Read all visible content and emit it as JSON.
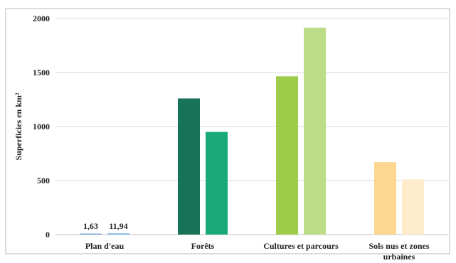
{
  "chart_data": {
    "type": "bar",
    "title": "",
    "xlabel": "",
    "ylabel": "Superficies en km²",
    "ylim": [
      0,
      2000
    ],
    "yticks": [
      "0",
      "500",
      "1000",
      "1500",
      "2000"
    ],
    "grid": true,
    "legend": "none",
    "categories": [
      "Plan d'eau",
      "Forêts",
      "Cultures et parcours",
      "Sols nus et zones urbaines"
    ],
    "series": [
      {
        "values": [
          1.63,
          1260,
          1465,
          670
        ],
        "colors": [
          "#7faedb",
          "#167358",
          "#9dcc48",
          "#fdd68f"
        ]
      },
      {
        "values": [
          11.94,
          950,
          1915,
          510
        ],
        "colors": [
          "#8bbbe8",
          "#1aaa7a",
          "#bcdc87",
          "#feeccc"
        ]
      }
    ],
    "data_labels": [
      "1,63",
      "11,94"
    ]
  }
}
